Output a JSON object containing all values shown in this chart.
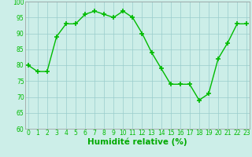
{
  "x": [
    0,
    1,
    2,
    3,
    4,
    5,
    6,
    7,
    8,
    9,
    10,
    11,
    12,
    13,
    14,
    15,
    16,
    17,
    18,
    19,
    20,
    21,
    22,
    23
  ],
  "y": [
    80,
    78,
    78,
    89,
    93,
    93,
    96,
    97,
    96,
    95,
    97,
    95,
    90,
    84,
    79,
    74,
    74,
    74,
    69,
    71,
    82,
    87,
    93,
    93
  ],
  "line_color": "#00bb00",
  "marker_color": "#00bb00",
  "bg_color": "#cceee8",
  "grid_color": "#99cccc",
  "xlabel": "Humidité relative (%)",
  "xlabel_color": "#00aa00",
  "ylim": [
    60,
    100
  ],
  "xlim": [
    -0.3,
    23.3
  ],
  "yticks": [
    60,
    65,
    70,
    75,
    80,
    85,
    90,
    95,
    100
  ],
  "xticks": [
    0,
    1,
    2,
    3,
    4,
    5,
    6,
    7,
    8,
    9,
    10,
    11,
    12,
    13,
    14,
    15,
    16,
    17,
    18,
    19,
    20,
    21,
    22,
    23
  ],
  "tick_labelsize": 5.5,
  "xlabel_fontsize": 7.5,
  "marker_size": 4,
  "line_width": 1.0
}
